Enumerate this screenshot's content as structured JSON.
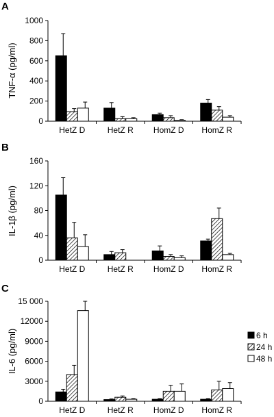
{
  "chart_data": [
    {
      "type": "bar",
      "panel": "A",
      "ylabel": "TNF-α (pg/ml)",
      "ylim": [
        0,
        1000
      ],
      "yticks": [
        "0",
        "200",
        "400",
        "600",
        "800",
        "1000"
      ],
      "categories": [
        "HetZ D",
        "HetZ R",
        "HomZ D",
        "HomZ R"
      ],
      "series": [
        {
          "name": "6 h",
          "values": [
            650,
            130,
            65,
            180
          ],
          "errors": [
            220,
            55,
            15,
            35
          ]
        },
        {
          "name": "24 h",
          "values": [
            95,
            25,
            35,
            110
          ],
          "errors": [
            30,
            20,
            20,
            35
          ]
        },
        {
          "name": "48 h",
          "values": [
            130,
            25,
            10,
            40
          ],
          "errors": [
            60,
            10,
            5,
            15
          ]
        }
      ]
    },
    {
      "type": "bar",
      "panel": "B",
      "ylabel": "IL-1β (pg/ml)",
      "ylim": [
        0,
        160
      ],
      "yticks": [
        "0",
        "40",
        "80",
        "120",
        "160"
      ],
      "categories": [
        "HetZ D",
        "HetZ R",
        "HomZ D",
        "HomZ R"
      ],
      "series": [
        {
          "name": "6 h",
          "values": [
            105,
            9,
            15,
            31
          ],
          "errors": [
            28,
            5,
            8,
            3
          ]
        },
        {
          "name": "24 h",
          "values": [
            36,
            12,
            6,
            67
          ],
          "errors": [
            25,
            5,
            3,
            17
          ]
        },
        {
          "name": "48 h",
          "values": [
            22,
            0,
            4,
            9
          ],
          "errors": [
            19,
            0,
            3,
            2
          ]
        }
      ]
    },
    {
      "type": "bar",
      "panel": "C",
      "ylabel": "IL-6 (pg/ml)",
      "ylim": [
        0,
        15000
      ],
      "yticks": [
        "0",
        "3000",
        "6000",
        "9000",
        "12000",
        "15 000"
      ],
      "categories": [
        "HetZ D",
        "HetZ R",
        "HomZ D",
        "HomZ R"
      ],
      "series": [
        {
          "name": "6 h",
          "values": [
            1400,
            250,
            300,
            300
          ],
          "errors": [
            400,
            100,
            100,
            100
          ]
        },
        {
          "name": "24 h",
          "values": [
            4000,
            600,
            1500,
            1700
          ],
          "errors": [
            1400,
            200,
            900,
            1300
          ]
        },
        {
          "name": "48 h",
          "values": [
            13600,
            300,
            1500,
            1900
          ],
          "errors": [
            1400,
            100,
            1100,
            900
          ]
        }
      ]
    }
  ],
  "legend": {
    "placement": "right of panel C",
    "items": [
      {
        "label": "6 h",
        "fill": "solid-black"
      },
      {
        "label": "24 h",
        "fill": "diagonal-hatch"
      },
      {
        "label": "48 h",
        "fill": "white"
      }
    ]
  },
  "colors": {
    "bar_dark": "#000000",
    "bar_light": "#ffffff",
    "axis": "#000000"
  }
}
